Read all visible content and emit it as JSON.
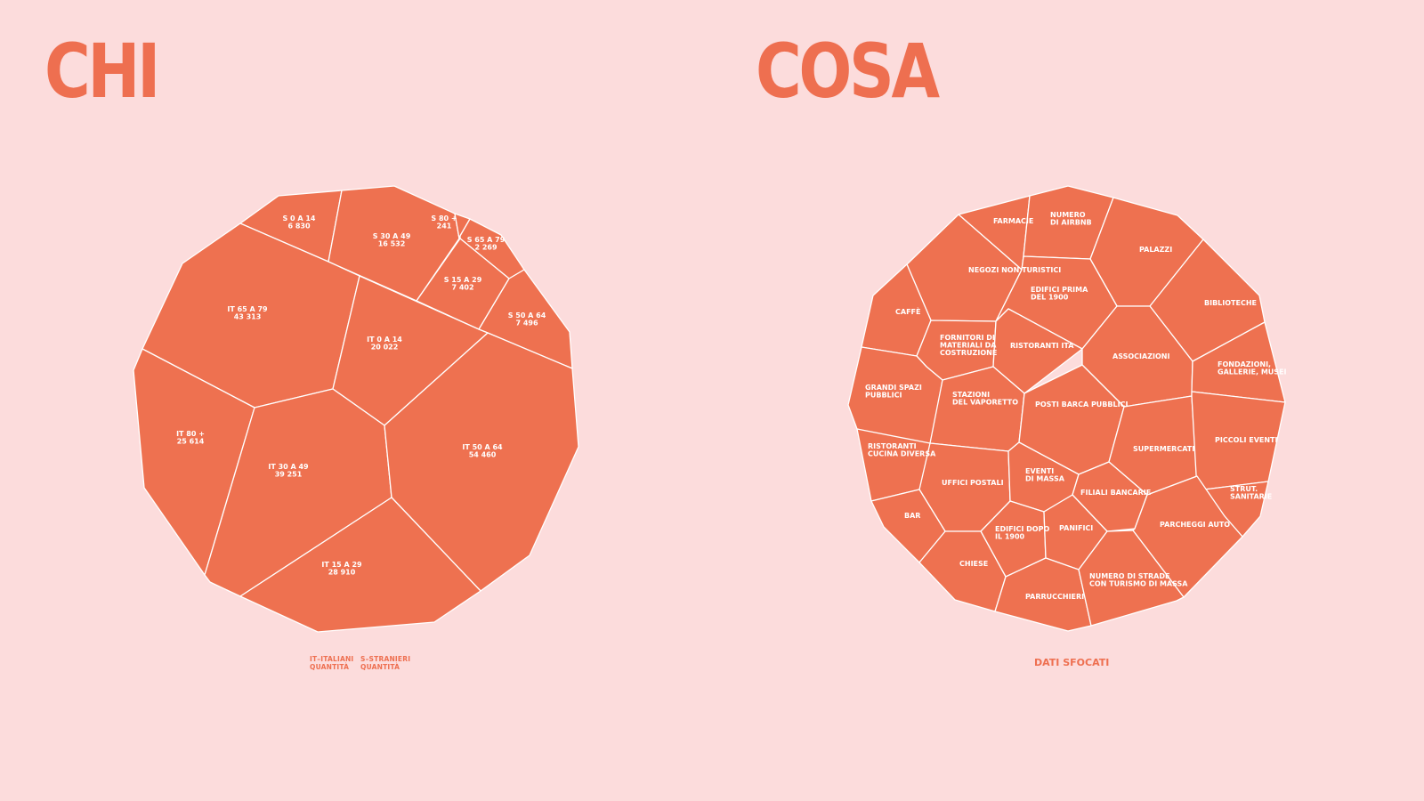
{
  "page": {
    "left_title": "CHI",
    "right_title": "COSA",
    "legend": [
      {
        "line1": "IT–ITALIANI",
        "line2": "QUANTITÀ"
      },
      {
        "line1": "S–STRANIERI",
        "line2": "QUANTITÀ"
      }
    ],
    "footnote": "DATI SFOCATI"
  },
  "colors": {
    "background": "#fcdcdc",
    "cell": "#ee7150",
    "accent": "#ee6f50",
    "border": "#ffffff"
  },
  "chi_cells": [
    {
      "id": "s-0-14",
      "lines": [
        "S 0 A 14",
        "6 830"
      ]
    },
    {
      "id": "s-30-49",
      "lines": [
        "S 30 A 49",
        "16 532"
      ]
    },
    {
      "id": "s-80",
      "lines": [
        "S 80 +",
        "241"
      ]
    },
    {
      "id": "s-65-79",
      "lines": [
        "S 65 A 79",
        "2 269"
      ]
    },
    {
      "id": "s-15-29",
      "lines": [
        "S 15 A 29",
        "7 402"
      ]
    },
    {
      "id": "s-50-64",
      "lines": [
        "S 50 A 64",
        "7 496"
      ]
    },
    {
      "id": "it-65-79",
      "lines": [
        "IT 65 A 79",
        "43 313"
      ]
    },
    {
      "id": "it-0-14",
      "lines": [
        "IT 0 A 14",
        "20 022"
      ]
    },
    {
      "id": "it-80",
      "lines": [
        "IT 80 +",
        "25 614"
      ]
    },
    {
      "id": "it-30-49",
      "lines": [
        "IT 30 A 49",
        "39 251"
      ]
    },
    {
      "id": "it-50-64",
      "lines": [
        "IT 50 A 64",
        "54 460"
      ]
    },
    {
      "id": "it-15-29",
      "lines": [
        "IT 15 A 29",
        "28 910"
      ]
    }
  ],
  "cosa_cells": [
    {
      "id": "farmacie",
      "lines": [
        "FARMACIE"
      ]
    },
    {
      "id": "airbnb",
      "lines": [
        "NUMERO",
        "DI AIRBNB"
      ]
    },
    {
      "id": "palazzi",
      "lines": [
        "PALAZZI"
      ]
    },
    {
      "id": "negozi",
      "lines": [
        "NEGOZI NON TURISTICI"
      ]
    },
    {
      "id": "edifici-prima",
      "lines": [
        "EDIFICI PRIMA",
        "DEL 1900"
      ]
    },
    {
      "id": "biblioteche",
      "lines": [
        "BIBLIOTECHE"
      ]
    },
    {
      "id": "caffe",
      "lines": [
        "CAFFÈ"
      ]
    },
    {
      "id": "fornitori",
      "lines": [
        "FORNITORI DI",
        "MATERIALI DA",
        "COSTRUZIONE"
      ]
    },
    {
      "id": "ristoranti-ita",
      "lines": [
        "RISTORANTI ITA"
      ]
    },
    {
      "id": "associazioni",
      "lines": [
        "ASSOCIAZIONI"
      ]
    },
    {
      "id": "fondazioni",
      "lines": [
        "FONDAZIONI,",
        "GALLERIE, MUSEI"
      ]
    },
    {
      "id": "grandi-spazi",
      "lines": [
        "GRANDI SPAZI",
        "PUBBLICI"
      ]
    },
    {
      "id": "stazioni",
      "lines": [
        "STAZIONI",
        "DEL VAPORETTO"
      ]
    },
    {
      "id": "posti-barca",
      "lines": [
        "POSTI BARCA PUBBLICI"
      ]
    },
    {
      "id": "supermercati",
      "lines": [
        "SUPERMERCATI"
      ]
    },
    {
      "id": "piccoli-eventi",
      "lines": [
        "PICCOLI EVENTI"
      ]
    },
    {
      "id": "ristoranti-diversa",
      "lines": [
        "RISTORANTI",
        "CUCINA DIVERSA"
      ]
    },
    {
      "id": "uffici-postali",
      "lines": [
        "UFFICI POSTALI"
      ]
    },
    {
      "id": "eventi-massa",
      "lines": [
        "EVENTI",
        "DI MASSA"
      ]
    },
    {
      "id": "filiali",
      "lines": [
        "FILIALI BANCARIE"
      ]
    },
    {
      "id": "strut-sanitarie",
      "lines": [
        "STRUT.",
        "SANITARIE"
      ]
    },
    {
      "id": "bar",
      "lines": [
        "BAR"
      ]
    },
    {
      "id": "edifici-dopo",
      "lines": [
        "EDIFICI DOPO",
        "IL 1900"
      ]
    },
    {
      "id": "panifici",
      "lines": [
        "PANIFICI"
      ]
    },
    {
      "id": "parcheggi",
      "lines": [
        "PARCHEGGI AUTO"
      ]
    },
    {
      "id": "chiese",
      "lines": [
        "CHIESE"
      ]
    },
    {
      "id": "parrucchieri",
      "lines": [
        "PARRUCCHIERI"
      ]
    },
    {
      "id": "strade-turismo",
      "lines": [
        "NUMERO DI STRADE",
        "CON TURISMO DI MASSA"
      ]
    }
  ]
}
